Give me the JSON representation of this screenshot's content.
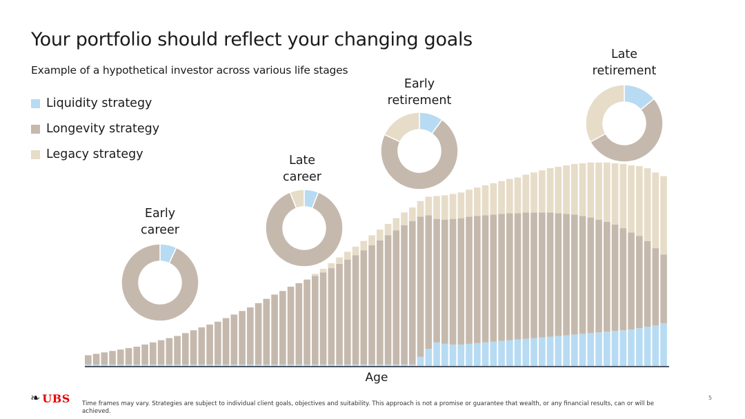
{
  "header": {
    "title": "Your portfolio should reflect your changing goals",
    "subtitle": "Example of a hypothetical investor across various life stages"
  },
  "colors": {
    "liquidity": "#b7dbf2",
    "longevity": "#c5b9ad",
    "legacy": "#e6dcc8",
    "axis": "#4a5460",
    "brand": "#e60000"
  },
  "chart_data": {
    "type": "bar",
    "stacked": true,
    "xlabel": "Age",
    "series_labels": [
      "Liquidity strategy",
      "Longevity strategy",
      "Legacy strategy"
    ],
    "legend_position": "top-left",
    "grid": false,
    "ylim": [
      0,
      280
    ],
    "series": [
      {
        "name": "Liquidity strategy",
        "values": [
          2,
          2,
          2,
          2,
          2,
          2,
          2,
          2,
          2,
          2,
          2,
          2,
          2,
          2,
          2,
          2,
          2,
          2,
          2,
          2,
          2,
          2,
          2,
          2,
          2,
          2,
          2,
          2,
          2,
          2,
          2,
          2,
          2,
          2,
          2,
          2,
          2,
          2,
          2,
          2,
          2,
          13,
          24,
          33,
          31,
          30,
          30,
          31,
          32,
          33,
          34,
          35,
          36,
          37,
          38,
          39,
          40,
          41,
          42,
          43,
          44,
          45,
          46,
          47,
          48,
          49,
          50,
          51,
          53,
          55,
          57,
          60
        ]
      },
      {
        "name": "Longevity strategy",
        "values": [
          13,
          15,
          17,
          19,
          21,
          23,
          25,
          28,
          31,
          34,
          37,
          40,
          44,
          48,
          52,
          56,
          60,
          65,
          70,
          75,
          80,
          86,
          92,
          98,
          103,
          109,
          114,
          119,
          124,
          129,
          135,
          141,
          147,
          153,
          160,
          167,
          174,
          181,
          188,
          195,
          201,
          196,
          187,
          173,
          174,
          176,
          177,
          178,
          178,
          178,
          178,
          178,
          178,
          177,
          177,
          176,
          175,
          174,
          172,
          170,
          168,
          165,
          162,
          158,
          154,
          149,
          143,
          136,
          129,
          120,
          108,
          96
        ]
      },
      {
        "name": "Legacy strategy",
        "values": [
          0,
          0,
          0,
          0,
          0,
          0,
          0,
          0,
          0,
          0,
          0,
          0,
          0,
          0,
          0,
          0,
          0,
          0,
          0,
          0,
          0,
          0,
          0,
          0,
          0,
          0,
          0,
          0,
          3,
          5,
          7,
          9,
          11,
          12,
          13,
          14,
          15,
          16,
          17,
          18,
          19,
          22,
          26,
          32,
          34,
          35,
          36,
          38,
          40,
          42,
          44,
          46,
          48,
          50,
          53,
          56,
          59,
          62,
          65,
          68,
          71,
          74,
          77,
          80,
          83,
          86,
          90,
          94,
          98,
          102,
          106,
          110
        ]
      }
    ],
    "stages": [
      {
        "label": "Early career",
        "liquidity": 7,
        "longevity": 93,
        "legacy": 0
      },
      {
        "label": "Late career",
        "liquidity": 6,
        "longevity": 88,
        "legacy": 6
      },
      {
        "label": "Early retirement",
        "liquidity": 10,
        "longevity": 72,
        "legacy": 18
      },
      {
        "label": "Late retirement",
        "liquidity": 14,
        "longevity": 53,
        "legacy": 33
      }
    ]
  },
  "legend": [
    {
      "label": "Liquidity strategy",
      "color": "#b7dbf2"
    },
    {
      "label": "Longevity strategy",
      "color": "#c5b9ad"
    },
    {
      "label": "Legacy strategy",
      "color": "#e6dcc8"
    }
  ],
  "stage_labels": {
    "early_career": [
      "Early",
      "career"
    ],
    "late_career": [
      "Late",
      "career"
    ],
    "early_retirement": [
      "Early",
      "retirement"
    ],
    "late_retirement": [
      "Late",
      "retirement"
    ]
  },
  "footer": {
    "logo_text": "UBS",
    "logo_icon": "three-keys-icon",
    "footnote": "Time frames may vary. Strategies are subject to individual client goals, objectives and suitability. This approach is not a promise or guarantee that wealth, or any financial results, can or will be achieved.",
    "page_number": "5"
  }
}
